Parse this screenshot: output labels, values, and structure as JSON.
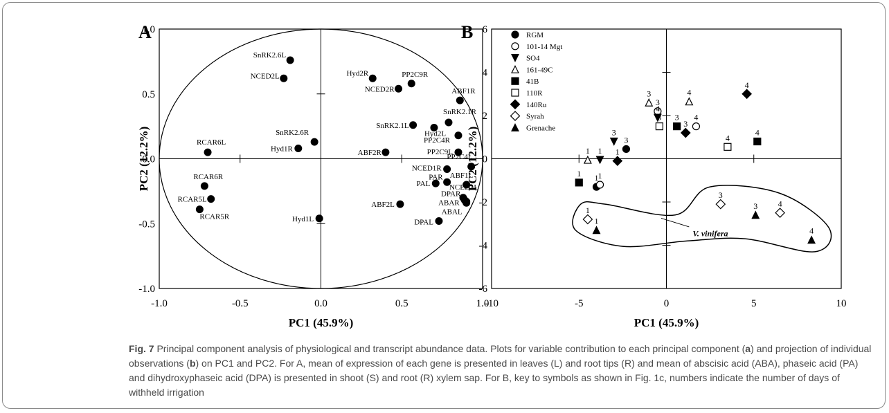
{
  "chart_data": [
    {
      "panel_label": "A",
      "type": "scatter",
      "xlabel": "PC1 (45.9%)",
      "ylabel": "PC2 (12.2%)",
      "xlim": [
        -1.0,
        1.0
      ],
      "ylim": [
        -1.0,
        1.0
      ],
      "x_ticks": [
        "-1.0",
        "-0.5",
        "0.0",
        "0.5",
        "1.0"
      ],
      "y_ticks": [
        "1.0",
        "0.5",
        "0.0",
        "-0.5",
        "-1.0"
      ],
      "unit_circle": true,
      "points": [
        {
          "label": "SnRK2.6L",
          "x": -0.19,
          "y": 0.76
        },
        {
          "label": "NCED2L",
          "x": -0.23,
          "y": 0.62
        },
        {
          "label": "Hyd2R",
          "x": 0.32,
          "y": 0.62
        },
        {
          "label": "PP2C9R",
          "x": 0.56,
          "y": 0.58
        },
        {
          "label": "NCED2R",
          "x": 0.48,
          "y": 0.54
        },
        {
          "label": "ABF1R",
          "x": 0.86,
          "y": 0.45
        },
        {
          "label": "SnRK2.1R",
          "x": 0.79,
          "y": 0.28
        },
        {
          "label": "SnRK2.1L",
          "x": 0.57,
          "y": 0.26
        },
        {
          "label": "Hyd2L",
          "x": 0.7,
          "y": 0.24
        },
        {
          "label": "PP2C4R",
          "x": 0.85,
          "y": 0.18
        },
        {
          "label": "SnRK2.6R",
          "x": -0.04,
          "y": 0.13
        },
        {
          "label": "Hyd1R",
          "x": -0.14,
          "y": 0.08
        },
        {
          "label": "RCAR6L",
          "x": -0.7,
          "y": 0.05
        },
        {
          "label": "ABF2R",
          "x": 0.4,
          "y": 0.05
        },
        {
          "label": "PP2C9L",
          "x": 0.85,
          "y": 0.05
        },
        {
          "label": "PP2C4L",
          "x": 0.93,
          "y": -0.06
        },
        {
          "label": "NCED1R",
          "x": 0.78,
          "y": -0.08
        },
        {
          "label": "PAR",
          "x": 0.78,
          "y": -0.18
        },
        {
          "label": "ABF1L",
          "x": 0.9,
          "y": -0.2
        },
        {
          "label": "PAL",
          "x": 0.71,
          "y": -0.19
        },
        {
          "label": "RCAR6R",
          "x": -0.72,
          "y": -0.21
        },
        {
          "label": "NCED1L",
          "x": 0.88,
          "y": -0.3
        },
        {
          "label": "DPAR",
          "x": 0.89,
          "y": -0.32
        },
        {
          "label": "ABAR",
          "x": 0.9,
          "y": -0.33
        },
        {
          "label": "ABF2L",
          "x": 0.49,
          "y": -0.35
        },
        {
          "label": "RCAR5L",
          "x": -0.68,
          "y": -0.31
        },
        {
          "label": "RCAR5R",
          "x": -0.75,
          "y": -0.39
        },
        {
          "label": "ABAL",
          "x": 0.9,
          "y": -0.34
        },
        {
          "label": "Hyd1L",
          "x": -0.01,
          "y": -0.46
        },
        {
          "label": "DPAL",
          "x": 0.73,
          "y": -0.48
        }
      ]
    },
    {
      "panel_label": "B",
      "type": "scatter",
      "xlabel": "PC1 (45.9%)",
      "ylabel": "PC2 (12.2%)",
      "xlim": [
        -10,
        10
      ],
      "ylim": [
        -6,
        6
      ],
      "x_ticks": [
        "-10",
        "-5",
        "0",
        "5",
        "10"
      ],
      "y_ticks": [
        "6",
        "4",
        "2",
        "0",
        "-2",
        "-4",
        "-6"
      ],
      "legend_position": "top-left",
      "series": [
        {
          "name": "RGM",
          "marker": "circle-filled",
          "points": [
            {
              "x": -2.3,
              "y": 0.45,
              "label": "3"
            },
            {
              "x": -4.0,
              "y": -1.3,
              "label": "1"
            }
          ]
        },
        {
          "name": "101-14 Mgt",
          "marker": "circle-open",
          "points": [
            {
              "x": -0.5,
              "y": 2.2,
              "label": "3"
            },
            {
              "x": 1.7,
              "y": 1.5,
              "label": "4"
            },
            {
              "x": -3.8,
              "y": -1.2,
              "label": "1"
            }
          ]
        },
        {
          "name": "SO4",
          "marker": "triangle-down-filled",
          "points": [
            {
              "x": -3.0,
              "y": 0.8,
              "label": "3"
            },
            {
              "x": -0.5,
              "y": 1.9,
              "label": "4"
            },
            {
              "x": -3.8,
              "y": -0.05,
              "label": "1"
            }
          ]
        },
        {
          "name": "161-49C",
          "marker": "triangle-up-open",
          "points": [
            {
              "x": -1.0,
              "y": 2.6,
              "label": "3"
            },
            {
              "x": 1.3,
              "y": 2.65,
              "label": "4"
            },
            {
              "x": -4.5,
              "y": -0.05,
              "label": "1"
            }
          ]
        },
        {
          "name": "41B",
          "marker": "square-filled",
          "points": [
            {
              "x": 0.6,
              "y": 1.5,
              "label": "3"
            },
            {
              "x": 5.2,
              "y": 0.8,
              "label": "4"
            },
            {
              "x": -5.0,
              "y": -1.1,
              "label": "1"
            }
          ]
        },
        {
          "name": "110R",
          "marker": "square-open",
          "points": [
            {
              "x": -0.4,
              "y": 1.5,
              "label": "3"
            },
            {
              "x": 3.5,
              "y": 0.55,
              "label": "4"
            }
          ]
        },
        {
          "name": "140Ru",
          "marker": "diamond-filled",
          "points": [
            {
              "x": 4.6,
              "y": 3.0,
              "label": "4"
            },
            {
              "x": 1.1,
              "y": 1.2,
              "label": "3"
            },
            {
              "x": -2.8,
              "y": -0.1,
              "label": "1"
            }
          ]
        },
        {
          "name": "Syrah",
          "marker": "diamond-open",
          "points": [
            {
              "x": 3.1,
              "y": -2.1,
              "label": "3"
            },
            {
              "x": 6.5,
              "y": -2.5,
              "label": "4"
            },
            {
              "x": -4.5,
              "y": -2.8,
              "label": "1"
            }
          ]
        },
        {
          "name": "Grenache",
          "marker": "triangle-up-filled",
          "points": [
            {
              "x": 5.1,
              "y": -2.6,
              "label": "3"
            },
            {
              "x": 8.3,
              "y": -3.75,
              "label": "4"
            },
            {
              "x": -4.0,
              "y": -3.3,
              "label": "1"
            }
          ]
        }
      ],
      "annotations": [
        {
          "text": "V. vinifera",
          "style": "bold-italic",
          "x": 1.5,
          "y": -3.45
        }
      ]
    }
  ],
  "caption": {
    "fig_label": "Fig. 7",
    "text_1": " Principal component analysis of physiological and transcript abundance data. Plots for variable contribution to each principal component (",
    "bold_a": "a",
    "text_2": ") and projection of individual observations (",
    "bold_b": "b",
    "text_3": ") on PC1 and PC2. For A, mean of expression of each gene is presented in leaves (L) and root tips (R) and mean of abscisic acid (ABA), phaseic acid (PA) and dihydroxyphaseic acid (DPA) is presented in shoot (S) and root (R) xylem sap. For B, key to symbols as shown in Fig. 1c, numbers indicate the number of days of withheld irrigation"
  }
}
